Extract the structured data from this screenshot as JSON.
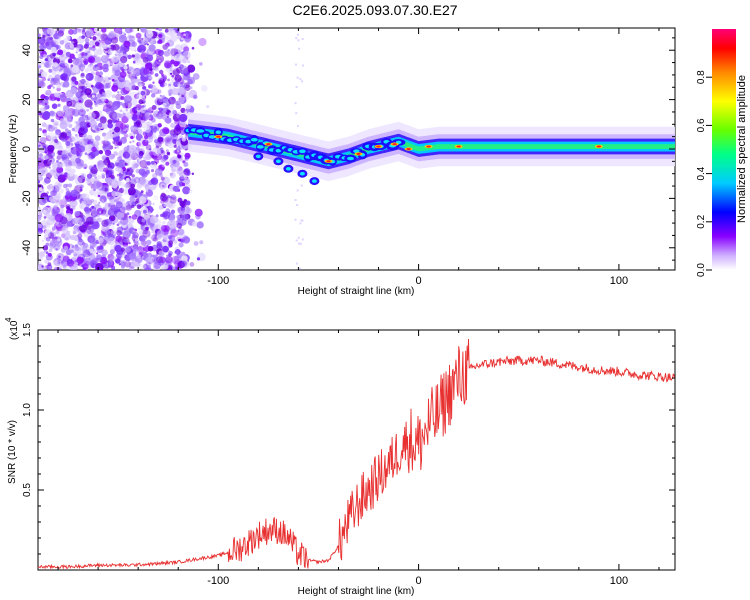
{
  "title": "C2E6.2025.093.07.30.E27",
  "chart_data": [
    {
      "type": "heatmap",
      "xlabel": "Height of straight line (km)",
      "ylabel": "Frequency (Hz)",
      "xlim": [
        -190,
        128
      ],
      "ylim": [
        -49,
        49
      ],
      "xticks": [
        -100,
        0,
        100
      ],
      "yticks": [
        -40,
        -20,
        0,
        20,
        40
      ],
      "colorbar": {
        "label": "Normalized spectral amplitude",
        "range": [
          0,
          1
        ],
        "ticks": [
          0.0,
          0.2,
          0.4,
          0.6,
          0.8
        ],
        "colors": [
          "#ffffff",
          "#8800ff",
          "#0000ff",
          "#00ccff",
          "#00ff88",
          "#66ff00",
          "#ffff00",
          "#ff8800",
          "#ff0000",
          "#ff0077"
        ]
      },
      "ridge": {
        "x": [
          -115,
          -105,
          -95,
          -85,
          -75,
          -65,
          -55,
          -45,
          -35,
          -25,
          -15,
          -10,
          0,
          10,
          20,
          40,
          60,
          80,
          100,
          128
        ],
        "y": [
          7,
          6,
          5,
          3,
          1,
          -1,
          -3,
          -5,
          -3,
          0,
          2,
          3,
          0,
          1,
          1,
          1,
          1,
          1,
          1,
          1
        ]
      },
      "noise_region": {
        "x": [
          -190,
          -115
        ],
        "y": [
          -49,
          49
        ]
      }
    },
    {
      "type": "line",
      "xlabel": "Height of straight line (km)",
      "ylabel": "SNR (10 * v/v)",
      "scale_note": "(x10",
      "scale_exp": "4",
      "xlim": [
        -190,
        128
      ],
      "ylim": [
        0,
        1.5
      ],
      "xticks": [
        -100,
        0,
        100
      ],
      "yticks": [
        0.5,
        1.0,
        1.5
      ],
      "color": "#e83030",
      "series": [
        {
          "x": [
            -190,
            -175,
            -160,
            -145,
            -130,
            -120,
            -110,
            -100,
            -90,
            -85,
            -80,
            -75,
            -70,
            -65,
            -60,
            -55,
            -50,
            -45,
            -40,
            -35,
            -30,
            -25,
            -20,
            -15,
            -10,
            -5,
            0,
            5,
            10,
            15,
            20,
            25,
            30,
            35,
            40,
            50,
            60,
            70,
            80,
            90,
            100,
            110,
            120,
            128
          ],
          "y": [
            0.02,
            0.02,
            0.03,
            0.03,
            0.04,
            0.05,
            0.07,
            0.09,
            0.13,
            0.17,
            0.22,
            0.25,
            0.25,
            0.2,
            0.1,
            0.06,
            0.05,
            0.06,
            0.15,
            0.3,
            0.42,
            0.5,
            0.58,
            0.65,
            0.75,
            0.82,
            0.78,
            0.9,
            0.98,
            1.1,
            1.2,
            1.25,
            1.28,
            1.29,
            1.3,
            1.31,
            1.31,
            1.29,
            1.27,
            1.25,
            1.24,
            1.22,
            1.21,
            1.2
          ]
        }
      ]
    }
  ]
}
